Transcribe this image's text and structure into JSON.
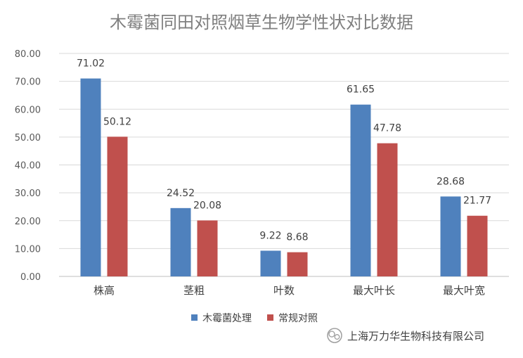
{
  "chart_data": {
    "type": "bar",
    "title": "木霉菌同田对照烟草生物学性状对比数据",
    "categories": [
      "株高",
      "茎粗",
      "叶数",
      "最大叶长",
      "最大叶宽"
    ],
    "series": [
      {
        "name": "木霉菌处理",
        "color": "#4f81bd",
        "values": [
          71.02,
          24.52,
          9.22,
          61.65,
          28.68
        ]
      },
      {
        "name": "常规对照",
        "color": "#c0504d",
        "values": [
          50.12,
          20.08,
          8.68,
          47.78,
          21.77
        ]
      }
    ],
    "ylim": [
      0,
      80
    ],
    "yticks": [
      "0.00",
      "10.00",
      "20.00",
      "30.00",
      "40.00",
      "50.00",
      "60.00",
      "70.00",
      "80.00"
    ],
    "grid": true,
    "legend_position": "bottom"
  },
  "watermark": {
    "icon": "wechat-icon",
    "text": "上海万力华生物科技有限公司"
  }
}
